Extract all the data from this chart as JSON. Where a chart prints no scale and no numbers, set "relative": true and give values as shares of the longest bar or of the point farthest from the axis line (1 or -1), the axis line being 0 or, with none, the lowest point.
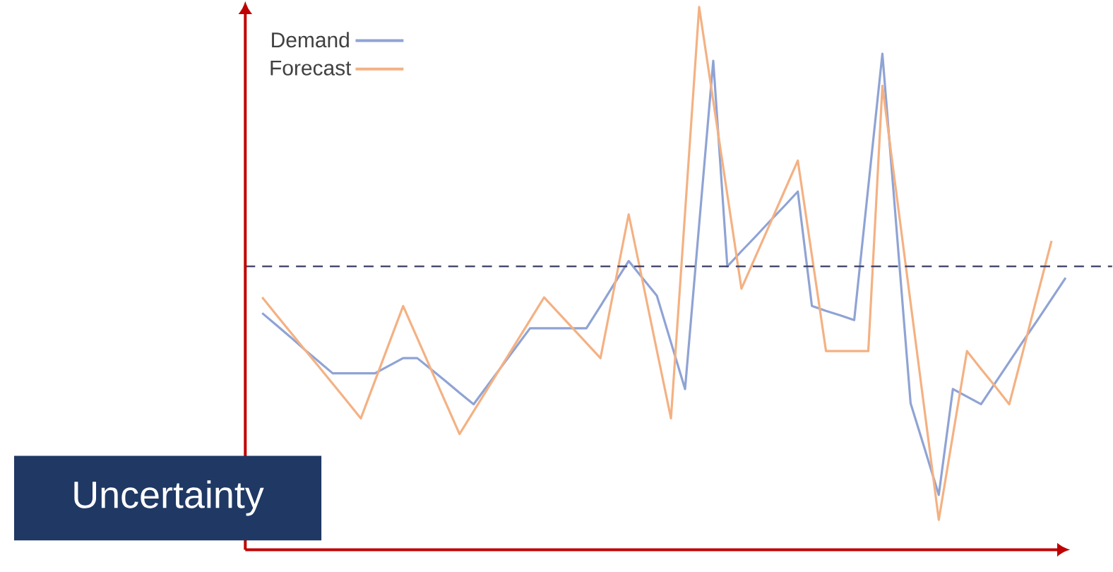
{
  "chart_data": {
    "type": "line",
    "relative": true,
    "tick_labels": false,
    "legend": "top left",
    "annotations": [
      "Uncertainty"
    ],
    "categories": [
      null,
      null,
      null,
      null,
      null,
      null,
      null,
      null,
      null,
      null,
      null,
      null,
      null,
      null,
      null,
      null,
      null,
      null,
      null,
      null,
      null,
      null,
      null,
      null,
      null,
      null,
      null,
      null,
      null,
      null,
      null,
      null,
      null,
      null,
      null,
      null,
      null,
      null,
      null,
      null,
      null,
      null,
      null,
      null,
      null,
      null,
      null,
      null,
      null,
      null,
      null,
      null,
      null,
      null,
      null,
      null,
      null,
      null
    ],
    "ref_lines": [
      {
        "axis": "y",
        "value": 0.522,
        "color": "#44476a",
        "line_style": "dashed"
      }
    ],
    "series": [
      {
        "name": "Demand",
        "color": "#8fa3d4",
        "values": [
          0.436,
          0.414,
          0.392,
          0.369,
          0.347,
          0.325,
          0.325,
          0.325,
          0.325,
          0.339,
          0.353,
          0.353,
          0.332,
          0.311,
          0.289,
          0.268,
          0.303,
          0.338,
          0.373,
          0.408,
          0.408,
          0.408,
          0.408,
          0.408,
          0.449,
          0.491,
          0.532,
          0.5,
          0.468,
          0.382,
          0.296,
          0.599,
          0.901,
          0.522,
          0.55,
          0.577,
          0.605,
          0.632,
          0.66,
          0.449,
          0.44,
          0.432,
          0.423,
          0.669,
          0.914,
          0.592,
          0.27,
          0.186,
          0.101,
          0.296,
          0.282,
          0.268,
          0.307,
          0.346,
          0.385,
          0.423,
          0.462,
          0.501
        ]
      },
      {
        "name": "Forecast",
        "color": "#f4b183",
        "values": [
          0.465,
          0.433,
          0.401,
          0.369,
          0.338,
          0.306,
          0.274,
          0.242,
          0.311,
          0.38,
          0.449,
          0.39,
          0.331,
          0.272,
          0.213,
          0.255,
          0.297,
          0.339,
          0.381,
          0.423,
          0.465,
          0.437,
          0.409,
          0.381,
          0.353,
          0.486,
          0.618,
          0.493,
          0.367,
          0.242,
          0.621,
          1.0,
          0.827,
          0.654,
          0.481,
          0.54,
          0.599,
          0.658,
          0.717,
          0.542,
          0.366,
          0.366,
          0.366,
          0.366,
          0.855,
          0.655,
          0.455,
          0.255,
          0.055,
          0.211,
          0.366,
          0.333,
          0.301,
          0.268,
          0.368,
          0.469,
          0.569,
          null
        ]
      }
    ]
  }
}
